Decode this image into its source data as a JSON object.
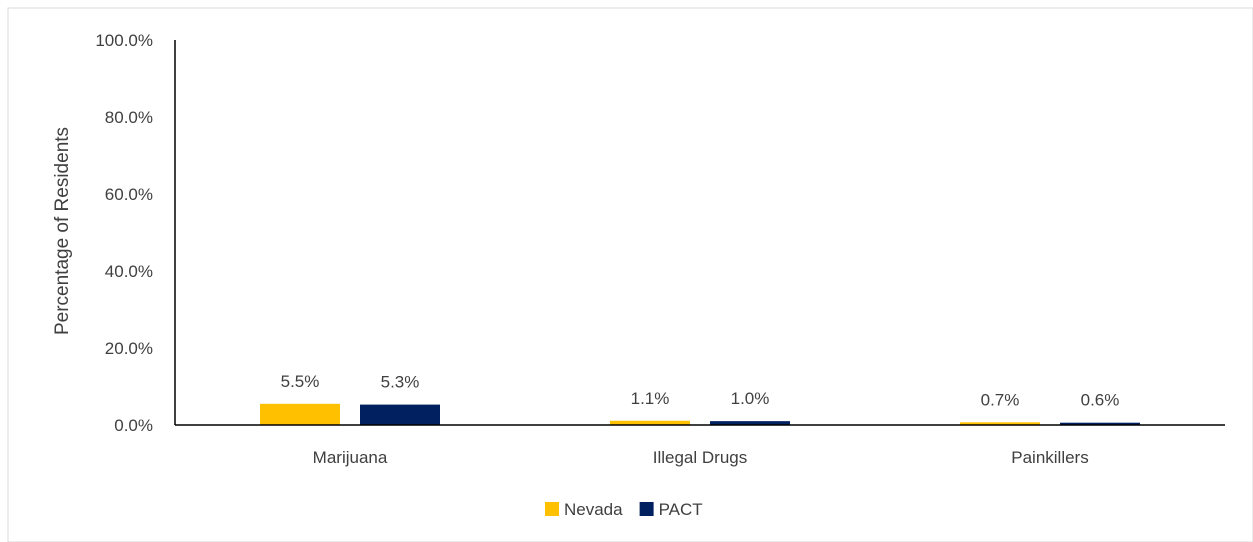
{
  "chart_data": {
    "type": "bar",
    "title": "",
    "xlabel": "",
    "ylabel": "Percentage of Residents",
    "ylim": [
      0,
      100
    ],
    "yticks": [
      0,
      20,
      40,
      60,
      80,
      100
    ],
    "ytick_labels": [
      "0.0%",
      "20.0%",
      "40.0%",
      "60.0%",
      "80.0%",
      "100.0%"
    ],
    "categories": [
      "Marijuana",
      "Illegal Drugs",
      "Painkillers"
    ],
    "series": [
      {
        "name": "Nevada",
        "color": "#FFC000",
        "values": [
          5.5,
          1.1,
          0.7
        ],
        "labels": [
          "5.5%",
          "1.1%",
          "0.7%"
        ]
      },
      {
        "name": "PACT",
        "color": "#002060",
        "values": [
          5.3,
          1.0,
          0.6
        ],
        "labels": [
          "5.3%",
          "1.0%",
          "0.6%"
        ]
      }
    ],
    "grid": false,
    "legend": "bottom"
  }
}
